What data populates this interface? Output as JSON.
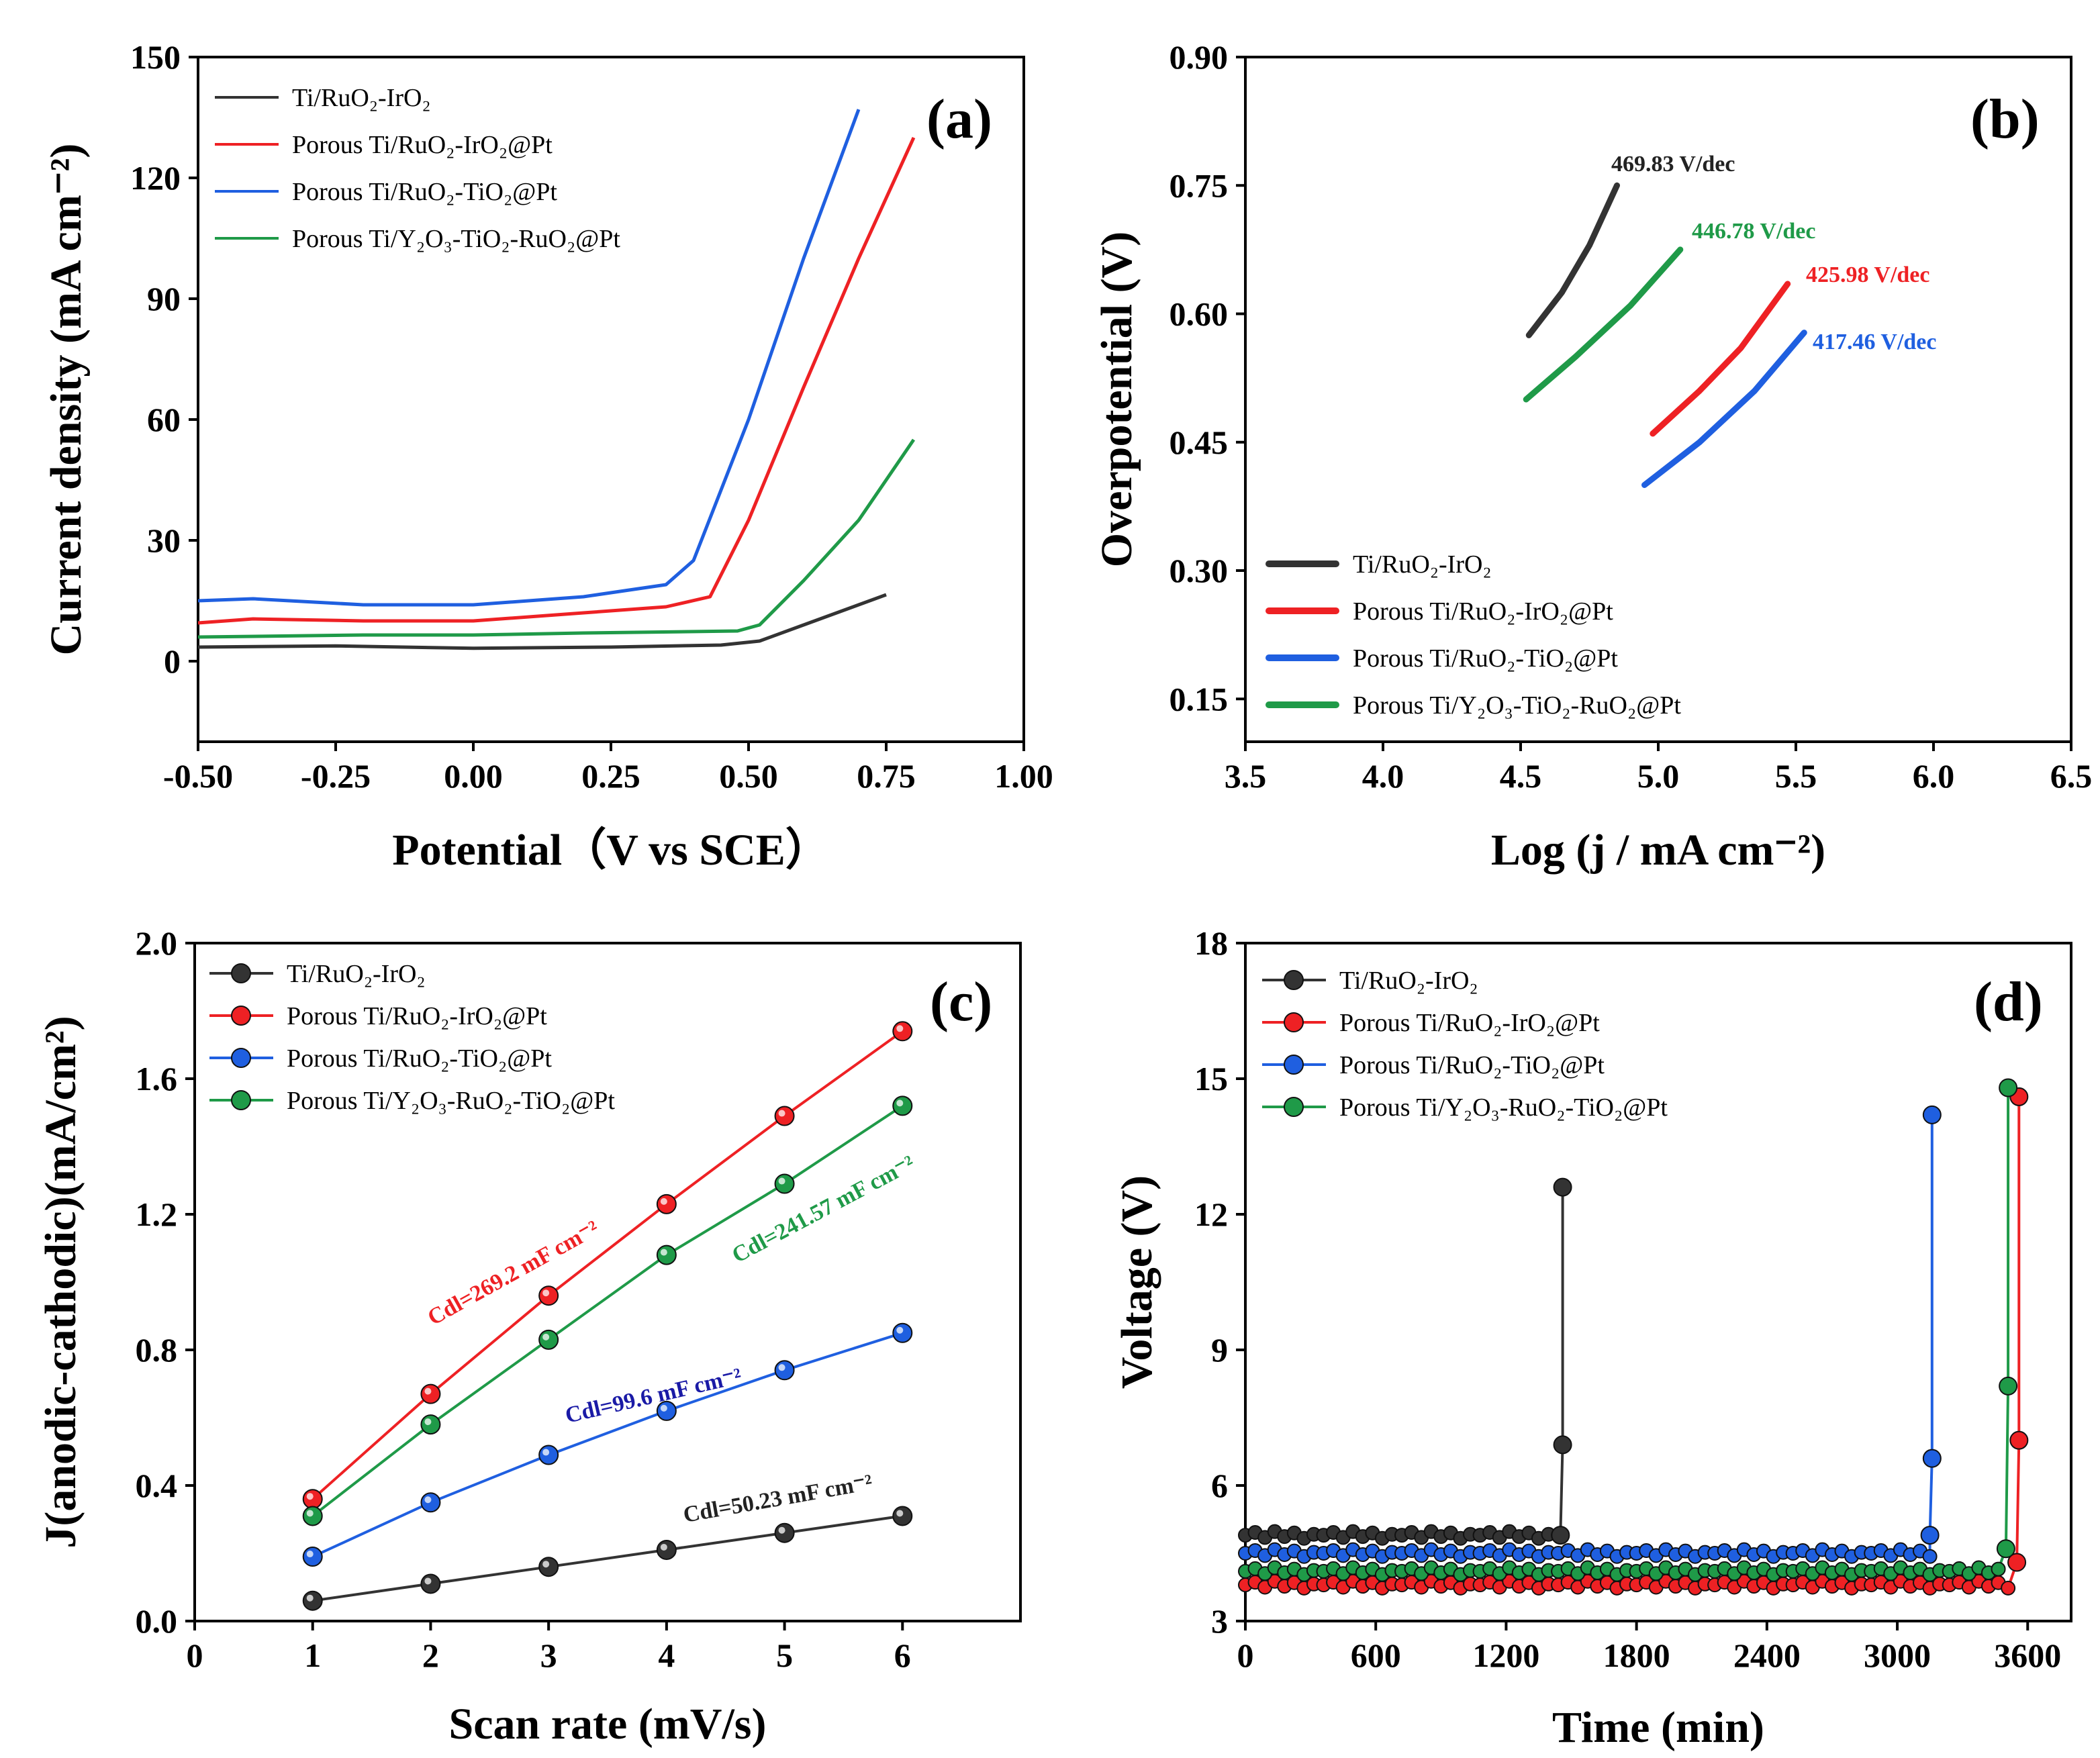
{
  "colors": {
    "black": "#333333",
    "red": "#ee2124",
    "blue": "#1f5fe0",
    "green": "#1f9a48"
  },
  "chart_data": [
    {
      "panel": "(a)",
      "type": "line",
      "xlabel": "Potential（V vs SCE）",
      "ylabel": "Current density (mA cm⁻²)",
      "xlim": [
        -0.5,
        1.0
      ],
      "ylim": [
        -20,
        150
      ],
      "xticks": [
        "-0.50",
        "-0.25",
        "0.00",
        "0.25",
        "0.50",
        "0.75",
        "1.00"
      ],
      "yticks": [
        "0",
        "30",
        "60",
        "90",
        "120",
        "150"
      ],
      "legend": [
        "Ti/RuO₂-IrO₂",
        "Porous Ti/RuO₂-IrO₂@Pt",
        "Porous Ti/RuO₂-TiO₂@Pt",
        "Porous Ti/Y₂O₃-TiO₂-RuO₂@Pt"
      ],
      "series": [
        {
          "name": "Ti/RuO₂-IrO₂",
          "color": "black",
          "x": [
            -0.5,
            -0.25,
            0.0,
            0.25,
            0.45,
            0.52,
            0.6,
            0.7,
            0.75
          ],
          "y": [
            3.5,
            3.8,
            3.2,
            3.5,
            4.0,
            5.0,
            9.0,
            14.0,
            16.5
          ]
        },
        {
          "name": "Porous Ti/RuO₂-IrO₂@Pt",
          "color": "red",
          "x": [
            -0.5,
            -0.4,
            -0.2,
            0.0,
            0.2,
            0.35,
            0.43,
            0.5,
            0.6,
            0.7,
            0.8
          ],
          "y": [
            9.5,
            10.5,
            10.0,
            10.0,
            12.0,
            13.5,
            16.0,
            35.0,
            68.0,
            100.0,
            130.0
          ]
        },
        {
          "name": "Porous Ti/RuO₂-TiO₂@Pt",
          "color": "blue",
          "x": [
            -0.5,
            -0.4,
            -0.2,
            0.0,
            0.2,
            0.35,
            0.4,
            0.5,
            0.6,
            0.7
          ],
          "y": [
            15.0,
            15.5,
            14.0,
            14.0,
            16.0,
            19.0,
            25.0,
            60.0,
            100.0,
            137.0
          ]
        },
        {
          "name": "Porous Ti/Y₂O₃-TiO₂-RuO₂@Pt",
          "color": "green",
          "x": [
            -0.5,
            -0.2,
            0.0,
            0.2,
            0.48,
            0.52,
            0.6,
            0.7,
            0.8
          ],
          "y": [
            6.0,
            6.5,
            6.5,
            7.0,
            7.5,
            9.0,
            20.0,
            35.0,
            55.0
          ]
        }
      ]
    },
    {
      "panel": "(b)",
      "type": "line",
      "xlabel": "Log (j / mA cm⁻²)",
      "ylabel": "Overpotential (V)",
      "xlim": [
        3.5,
        6.5
      ],
      "ylim": [
        0.1,
        0.9
      ],
      "xticks": [
        "3.5",
        "4.0",
        "4.5",
        "5.0",
        "5.5",
        "6.0",
        "6.5"
      ],
      "yticks": [
        "0.15",
        "0.30",
        "0.45",
        "0.60",
        "0.75",
        "0.90"
      ],
      "legend": [
        "Ti/RuO₂-IrO₂",
        "Porous Ti/RuO₂-IrO₂@Pt",
        "Porous Ti/RuO₂-TiO₂@Pt",
        "Porous Ti/Y₂O₃-TiO₂-RuO₂@Pt"
      ],
      "annotations": [
        "469.83 V/dec",
        "446.78 V/dec",
        "425.98 V/dec",
        "417.46 V/dec"
      ],
      "series": [
        {
          "name": "Ti/RuO₂-IrO₂",
          "color": "black",
          "x": [
            4.53,
            4.65,
            4.75,
            4.85
          ],
          "y": [
            0.575,
            0.625,
            0.68,
            0.75
          ]
        },
        {
          "name": "Porous Ti/RuO₂-IrO₂@Pt",
          "color": "red",
          "x": [
            4.98,
            5.15,
            5.3,
            5.47
          ],
          "y": [
            0.46,
            0.51,
            0.56,
            0.635
          ]
        },
        {
          "name": "Porous Ti/RuO₂-TiO₂@Pt",
          "color": "blue",
          "x": [
            4.95,
            5.15,
            5.35,
            5.53
          ],
          "y": [
            0.4,
            0.45,
            0.51,
            0.578
          ]
        },
        {
          "name": "Porous Ti/Y₂O₃-TiO₂-RuO₂@Pt",
          "color": "green",
          "x": [
            4.52,
            4.7,
            4.9,
            5.08
          ],
          "y": [
            0.5,
            0.55,
            0.61,
            0.675
          ]
        }
      ]
    },
    {
      "panel": "(c)",
      "type": "line",
      "xlabel": "Scan rate (mV/s)",
      "ylabel": "J(anodic-cathodic)(mA/cm²)",
      "xlim": [
        0,
        7
      ],
      "ylim": [
        0,
        2.0
      ],
      "xticks": [
        "0",
        "1",
        "2",
        "3",
        "4",
        "5",
        "6"
      ],
      "yticks": [
        "0.0",
        "0.4",
        "0.8",
        "1.2",
        "1.6",
        "2.0"
      ],
      "legend": [
        "Ti/RuO₂-IrO₂",
        "Porous Ti/RuO₂-IrO₂@Pt",
        "Porous Ti/RuO₂-TiO₂@Pt",
        "Porous Ti/Y₂O₃-RuO₂-TiO₂@Pt"
      ],
      "annotations": [
        "Cdl=50.23 mF cm⁻²",
        "Cdl=269.2 mF cm⁻²",
        "Cdl=99.6 mF cm⁻²",
        "Cdl=241.57 mF cm⁻²"
      ],
      "x": [
        1,
        2,
        3,
        4,
        5,
        6
      ],
      "series": [
        {
          "name": "Ti/RuO₂-IrO₂",
          "color": "black",
          "values": [
            0.06,
            0.11,
            0.16,
            0.21,
            0.26,
            0.31
          ]
        },
        {
          "name": "Porous Ti/RuO₂-IrO₂@Pt",
          "color": "red",
          "values": [
            0.36,
            0.67,
            0.96,
            1.23,
            1.49,
            1.74
          ]
        },
        {
          "name": "Porous Ti/RuO₂-TiO₂@Pt",
          "color": "blue",
          "values": [
            0.19,
            0.35,
            0.49,
            0.62,
            0.74,
            0.85
          ]
        },
        {
          "name": "Porous Ti/Y₂O₃-RuO₂-TiO₂@Pt",
          "color": "green",
          "values": [
            0.31,
            0.58,
            0.83,
            1.08,
            1.29,
            1.52
          ]
        }
      ]
    },
    {
      "panel": "(d)",
      "type": "line",
      "xlabel": "Time (min)",
      "ylabel": "Voltage (V)",
      "xlim": [
        0,
        3800
      ],
      "ylim": [
        3,
        18
      ],
      "xticks": [
        "0",
        "600",
        "1200",
        "1800",
        "2400",
        "3000",
        "3600"
      ],
      "yticks": [
        "3",
        "6",
        "9",
        "12",
        "15",
        "18"
      ],
      "legend": [
        "Ti/RuO₂-IrO₂",
        "Porous Ti/RuO₂-IrO₂@Pt",
        "Porous Ti/RuO₂-TiO₂@Pt",
        "Porous Ti/Y₂O₃-RuO₂-TiO₂@Pt"
      ],
      "series": [
        {
          "name": "Ti/RuO₂-IrO₂",
          "color": "black",
          "baseline": 4.9,
          "end_time": 1450,
          "spike_x": [
            1450,
            1460,
            1460
          ],
          "spike_y": [
            4.9,
            6.9,
            12.6
          ]
        },
        {
          "name": "Porous Ti/RuO₂-IrO₂@Pt",
          "color": "red",
          "baseline": 3.8,
          "end_time": 3550,
          "spike_x": [
            3550,
            3560,
            3560
          ],
          "spike_y": [
            4.3,
            7.0,
            14.6
          ]
        },
        {
          "name": "Porous Ti/RuO₂-TiO₂@Pt",
          "color": "blue",
          "baseline": 4.5,
          "end_time": 3150,
          "spike_x": [
            3150,
            3160,
            3160
          ],
          "spike_y": [
            4.9,
            6.6,
            14.2
          ]
        },
        {
          "name": "Porous Ti/Y₂O₃-RuO₂-TiO₂@Pt",
          "color": "green",
          "baseline": 4.1,
          "end_time": 3500,
          "spike_x": [
            3500,
            3510,
            3510
          ],
          "spike_y": [
            4.6,
            8.2,
            14.8
          ]
        }
      ]
    }
  ]
}
